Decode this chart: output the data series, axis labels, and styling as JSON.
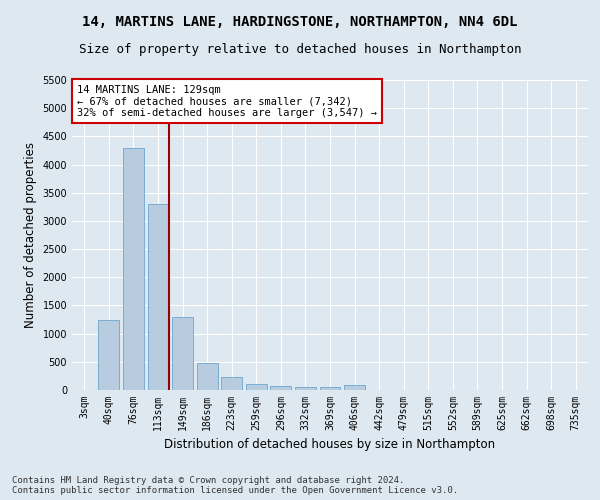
{
  "title": "14, MARTINS LANE, HARDINGSTONE, NORTHAMPTON, NN4 6DL",
  "subtitle": "Size of property relative to detached houses in Northampton",
  "xlabel": "Distribution of detached houses by size in Northampton",
  "ylabel": "Number of detached properties",
  "categories": [
    "3sqm",
    "40sqm",
    "76sqm",
    "113sqm",
    "149sqm",
    "186sqm",
    "223sqm",
    "259sqm",
    "296sqm",
    "332sqm",
    "369sqm",
    "406sqm",
    "442sqm",
    "479sqm",
    "515sqm",
    "552sqm",
    "589sqm",
    "625sqm",
    "662sqm",
    "698sqm",
    "735sqm"
  ],
  "values": [
    0,
    1250,
    4300,
    3300,
    1300,
    480,
    230,
    100,
    70,
    60,
    50,
    80,
    0,
    0,
    0,
    0,
    0,
    0,
    0,
    0,
    0
  ],
  "bar_color": "#b8ccdf",
  "bar_edge_color": "#7aadd4",
  "ylim": [
    0,
    5500
  ],
  "yticks": [
    0,
    500,
    1000,
    1500,
    2000,
    2500,
    3000,
    3500,
    4000,
    4500,
    5000,
    5500
  ],
  "annotation_text_line1": "14 MARTINS LANE: 129sqm",
  "annotation_text_line2": "← 67% of detached houses are smaller (7,342)",
  "annotation_text_line3": "32% of semi-detached houses are larger (3,547) →",
  "vline_index": 3.44,
  "footer_line1": "Contains HM Land Registry data © Crown copyright and database right 2024.",
  "footer_line2": "Contains public sector information licensed under the Open Government Licence v3.0.",
  "background_color": "#dde8f0",
  "plot_background_color": "#dde8f0",
  "grid_color": "#ffffff",
  "title_fontsize": 10,
  "subtitle_fontsize": 9,
  "axis_label_fontsize": 8.5,
  "tick_fontsize": 7,
  "footer_fontsize": 6.5,
  "annotation_fontsize": 7.5
}
